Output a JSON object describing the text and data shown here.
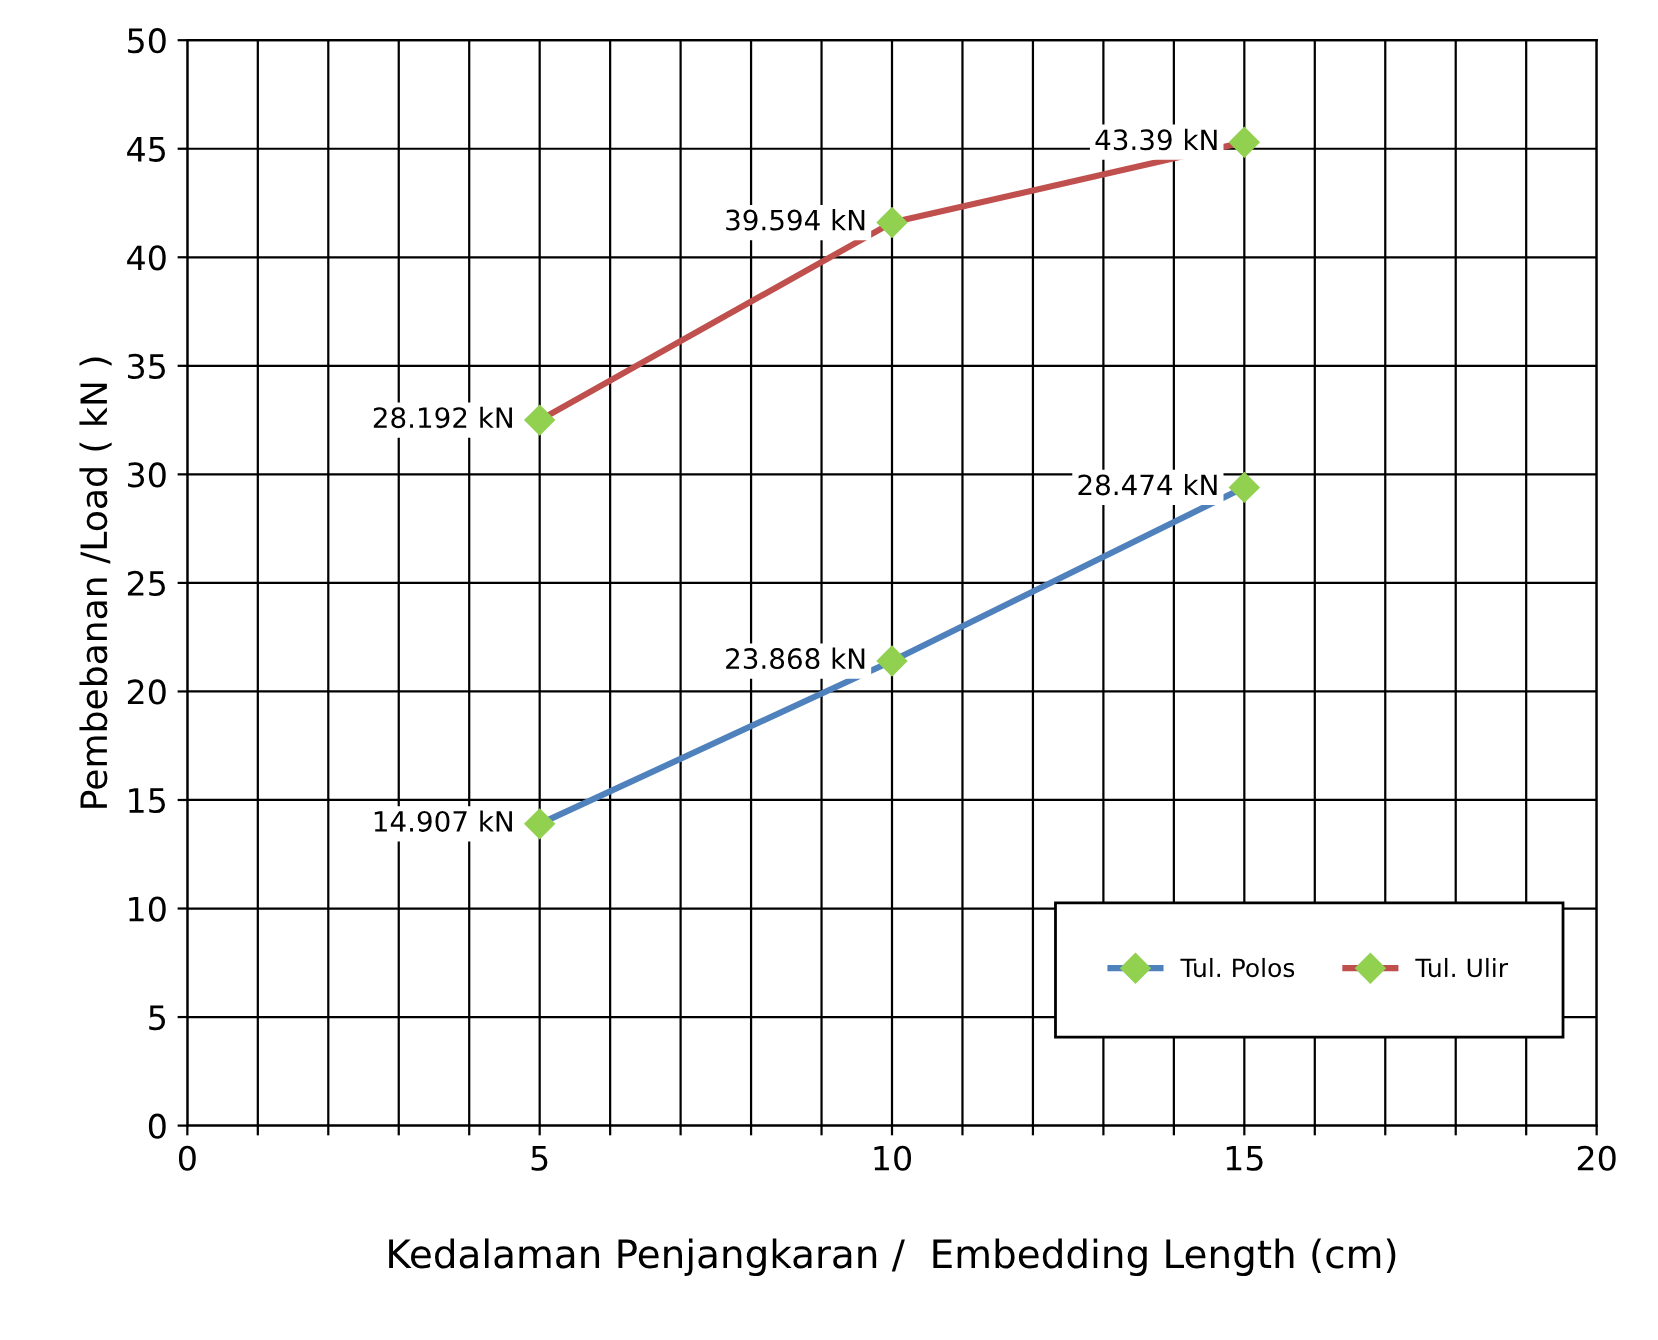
{
  "chart_data": {
    "type": "line",
    "xlabel": "Kedalaman Penjangkaran /  Embedding Length (cm)",
    "ylabel": "Pembebanan /Load ( kN )",
    "x": [
      5,
      10,
      15
    ],
    "series": [
      {
        "name": "Tul. Polos",
        "color": "#4f81bd",
        "values": [
          13.9,
          21.4,
          29.4
        ]
      },
      {
        "name": "Tul. Ulir",
        "color": "#c0504d",
        "values": [
          32.5,
          41.6,
          45.3
        ]
      }
    ],
    "annotations": [
      {
        "text": "14.907 kN",
        "x": 5,
        "y": 13.9
      },
      {
        "text": "23.868 kN",
        "x": 10,
        "y": 21.4
      },
      {
        "text": "28.474 kN",
        "x": 15,
        "y": 29.4
      },
      {
        "text": "28.192 kN",
        "x": 5,
        "y": 32.5
      },
      {
        "text": "39.594 kN",
        "x": 10,
        "y": 41.6
      },
      {
        "text": "43.39 kN",
        "x": 15,
        "y": 45.3
      }
    ],
    "xlim": [
      0,
      20
    ],
    "xticks": [
      0,
      {
        "value": 1,
        "label": null
      },
      {
        "value": 2,
        "label": null
      },
      {
        "value": 3,
        "label": null
      },
      {
        "value": 4,
        "label": null
      },
      5,
      {
        "value": 6,
        "label": null
      },
      {
        "value": 7,
        "label": null
      },
      {
        "value": 8,
        "label": null
      },
      {
        "value": 9,
        "label": null
      },
      10,
      {
        "value": 11,
        "label": null
      },
      {
        "value": 12,
        "label": null
      },
      {
        "value": 13,
        "label": null
      },
      {
        "value": 14,
        "label": null
      },
      15,
      {
        "value": 16,
        "label": null
      },
      {
        "value": 17,
        "label": null
      },
      {
        "value": 18,
        "label": null
      },
      {
        "value": 19,
        "label": null
      },
      20
    ],
    "ylim": [
      0,
      50
    ],
    "yticks": [
      0,
      5,
      10,
      15,
      20,
      25,
      30,
      35,
      40,
      45,
      50
    ],
    "grid": true,
    "legend": "bottom right",
    "marker": "diamond",
    "line_style": "solid"
  }
}
